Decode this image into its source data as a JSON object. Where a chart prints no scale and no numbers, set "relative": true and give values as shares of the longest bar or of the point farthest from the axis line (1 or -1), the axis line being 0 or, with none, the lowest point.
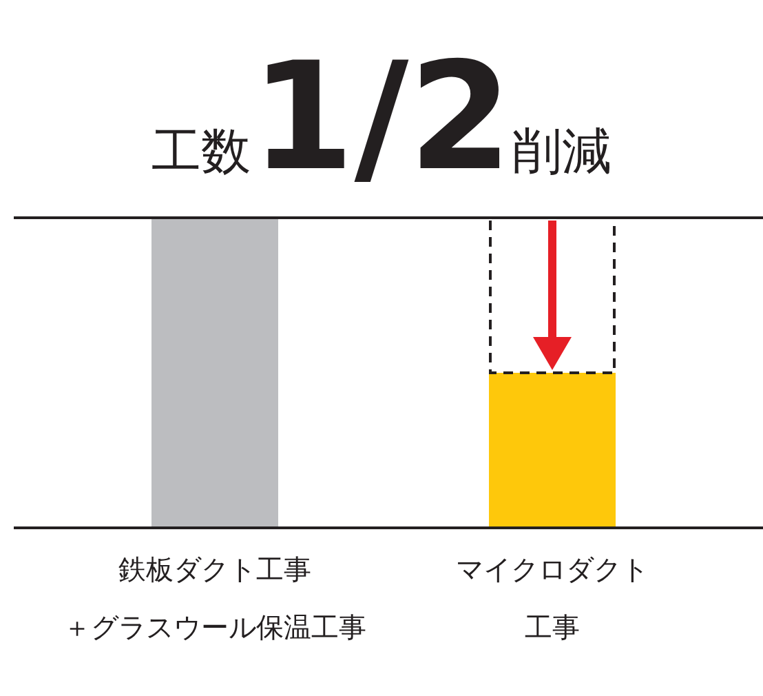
{
  "chart_data": {
    "type": "bar",
    "title": "工数**1/2**削減",
    "categories": [
      "鉄板ダクト工事＋グラスウール保温工事",
      "マイクロダクト工事"
    ],
    "values": [
      1,
      0.5
    ],
    "colors": [
      "#bcbdc0",
      "#fec80b"
    ],
    "relative": true,
    "ref_lines": [
      {
        "axis": "y",
        "value": 1,
        "color": "#231f20"
      }
    ]
  }
}
